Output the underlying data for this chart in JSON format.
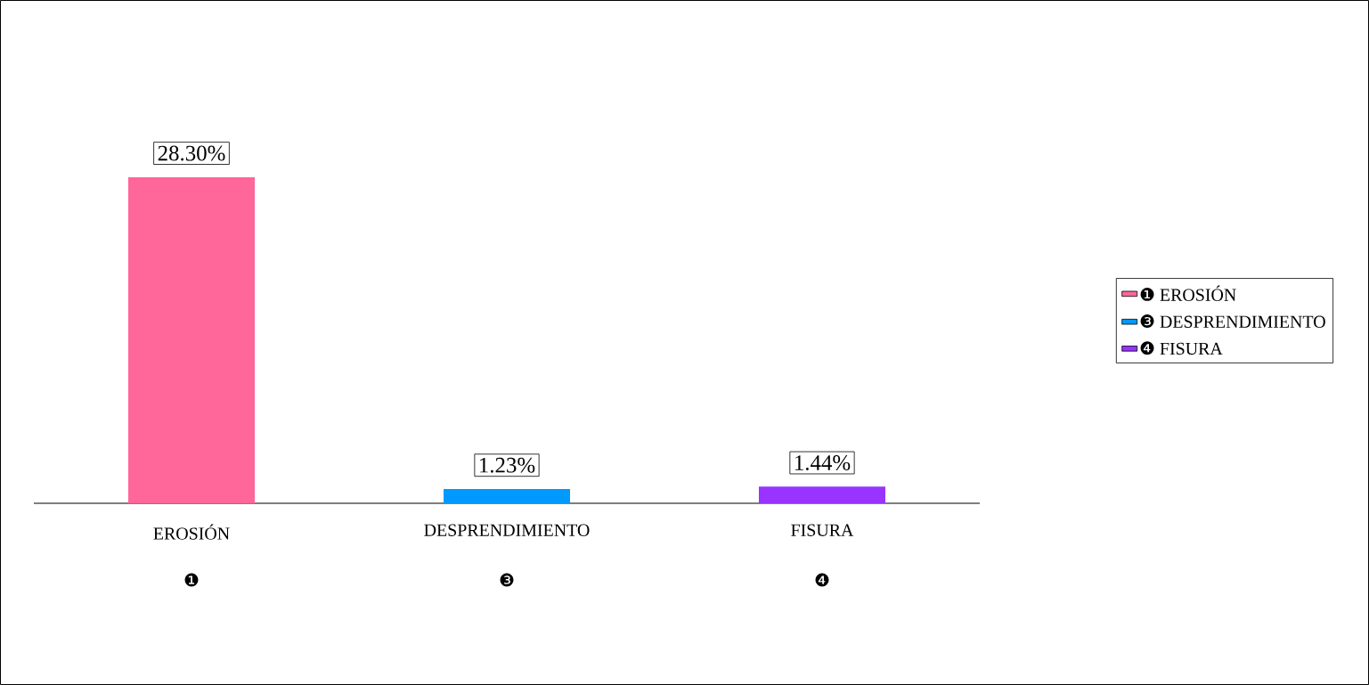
{
  "chart_data": {
    "type": "bar",
    "categories": [
      "EROSIÓN",
      "DESPRENDIMIENTO",
      "FISURA"
    ],
    "annotations": [
      "❶",
      "❸",
      "❹"
    ],
    "series": [
      {
        "name": "❶ EROSIÓN",
        "color": "#ff6699",
        "values": [
          28.3,
          null,
          null
        ],
        "value_labels": [
          "28.30%",
          null,
          null
        ]
      },
      {
        "name": "❸ DESPRENDIMIENTO",
        "color": "#0099ff",
        "values": [
          null,
          1.23,
          null
        ],
        "value_labels": [
          null,
          "1.23%",
          null
        ]
      },
      {
        "name": "❹ FISURA",
        "color": "#9933ff",
        "values": [
          null,
          null,
          1.44
        ],
        "value_labels": [
          null,
          null,
          "1.44%"
        ]
      }
    ],
    "legend": "right",
    "tick_labels": "x"
  }
}
